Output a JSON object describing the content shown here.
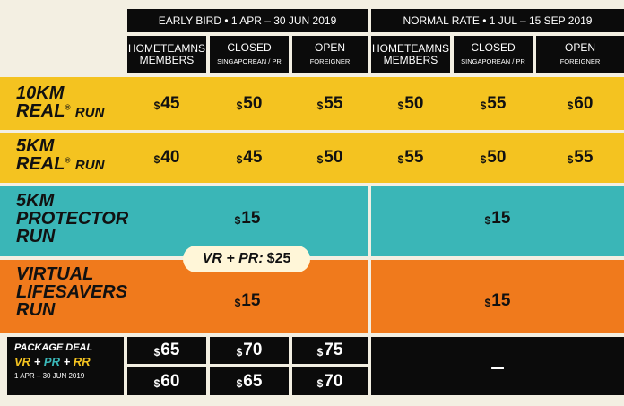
{
  "headers": {
    "early_bird": "EARLY BIRD  •  1 APR – 30 JUN 2019",
    "normal_rate": "NORMAL RATE  •  1 JUL – 15 SEP 2019"
  },
  "columns": [
    {
      "top": "HOMETEAMNS",
      "bottom": "MEMBERS"
    },
    {
      "top": "CLOSED",
      "bottom": "SINGAPOREAN / PR"
    },
    {
      "top": "OPEN",
      "bottom": "FOREIGNER"
    },
    {
      "top": "HOMETEAMNS",
      "bottom": "MEMBERS"
    },
    {
      "top": "CLOSED",
      "bottom": "SINGAPOREAN / PR"
    },
    {
      "top": "OPEN",
      "bottom": "FOREIGNER"
    }
  ],
  "rows": {
    "r10km": {
      "line1": "10KM",
      "line2_a": "REAL",
      "line2_reg": "®",
      "line2_b": "RUN",
      "prices": [
        "45",
        "50",
        "55",
        "50",
        "55",
        "60"
      ]
    },
    "r5km": {
      "line1": "5KM",
      "line2_a": "REAL",
      "line2_reg": "®",
      "line2_b": "RUN",
      "prices": [
        "40",
        "45",
        "50",
        "55",
        "50",
        "55"
      ]
    },
    "protector": {
      "line1": "5KM",
      "line2": "PROTECTOR",
      "line3": "RUN",
      "early": "15",
      "normal": "15"
    },
    "virtual": {
      "line1": "VIRTUAL",
      "line2": "LIFESAVERS",
      "line3": "RUN",
      "early": "15",
      "normal": "15"
    }
  },
  "combo_pill": {
    "prefix": "VR + PR:",
    "price": "25"
  },
  "currency_symbol": "$",
  "package": {
    "title": "PACKAGE DEAL",
    "vr": "VR",
    "plus1": "+",
    "pr": "PR",
    "plus2": "+",
    "rr": "RR",
    "date": "1 APR – 30 JUN 2019",
    "row1": [
      "65",
      "70",
      "75"
    ],
    "row2": [
      "60",
      "65",
      "70"
    ],
    "normal_dash": "–"
  },
  "colors": {
    "yellow": "#f4c320",
    "teal": "#3ab6b7",
    "orange": "#f07a1c",
    "black": "#0b0b0b",
    "vr_color": "#f4c320",
    "pr_color": "#3ab6b7",
    "rr_color": "#f4c320"
  }
}
